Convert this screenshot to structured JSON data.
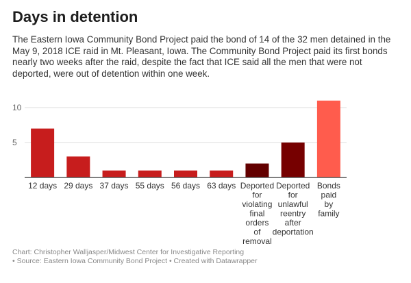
{
  "title": "Days in detention",
  "description": "The Eastern Iowa Community Bond Project paid the bond of 14 of the 32 men detained in the May 9, 2018 ICE raid in Mt. Pleasant, Iowa. The Community Bond Project paid its first bonds nearly two weeks after the raid, despite the fact that ICE said all the men that were not deported, were out of detention within one week.",
  "chart_data": {
    "type": "bar",
    "categories": [
      "12 days",
      "29 days",
      "37 days",
      "55 days",
      "56 days",
      "63 days",
      "Deported for violating final orders of removal",
      "Deported for unlawful reentry after deportation",
      "Bonds paid by family"
    ],
    "values": [
      7,
      3,
      1,
      1,
      1,
      1,
      2,
      5,
      11
    ],
    "colors": [
      "#c71d1d",
      "#c71d1d",
      "#c71d1d",
      "#c71d1d",
      "#c71d1d",
      "#c71d1d",
      "#630000",
      "#760000",
      "#ff5c4d"
    ],
    "yticks": [
      5,
      10
    ],
    "ylim": [
      0,
      11
    ],
    "grid": true,
    "title": "Days in detention",
    "xlabel": "",
    "ylabel": ""
  },
  "footer": {
    "line1": "Chart: Christopher Walljasper/Midwest Center for Investigative Reporting",
    "line2": "• Source: Eastern Iowa Community Bond Project • Created with Datawrapper"
  }
}
